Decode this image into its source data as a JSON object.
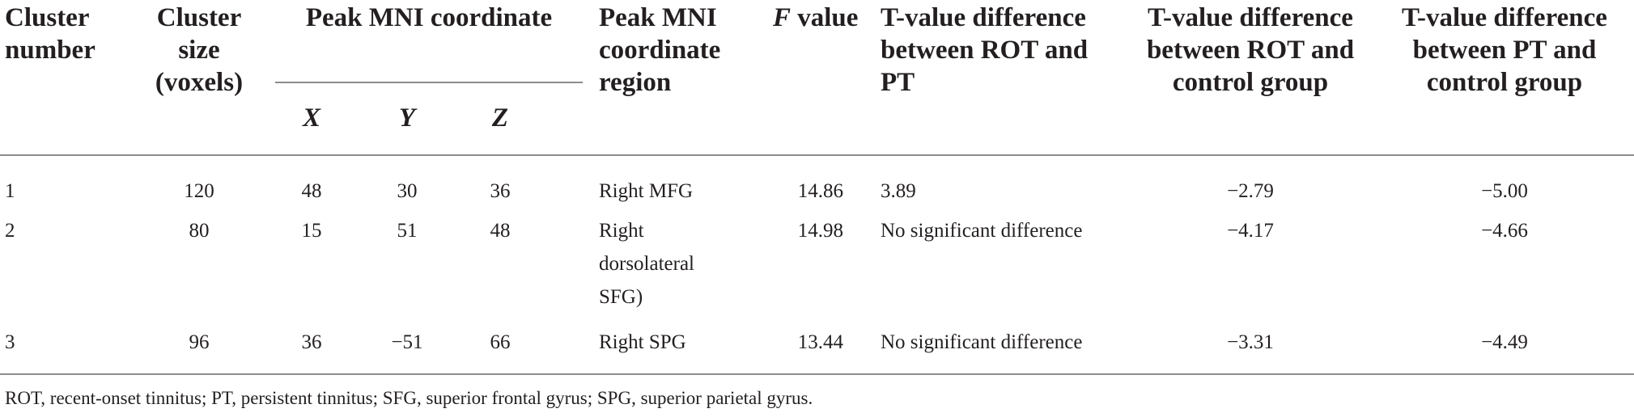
{
  "table": {
    "headers": {
      "cluster_number": "Cluster number",
      "cluster_size": "Cluster size (voxels)",
      "peak_mni_coordinate": "Peak MNI coordinate",
      "x": "X",
      "y": "Y",
      "z": "Z",
      "peak_region": "Peak MNI coordinate region",
      "f_value_letter": "F",
      "f_value_word": " value",
      "t_rot_pt": "T-value difference between ROT and PT",
      "t_rot_control": "T-value difference between ROT and control group",
      "t_pt_control": "T-value difference between PT and control group"
    },
    "rows": [
      {
        "cluster": "1",
        "size": "120",
        "x": "48",
        "y": "30",
        "z": "36",
        "region": "Right MFG",
        "f": "14.86",
        "t_rot_pt": "3.89",
        "t_rot_control": "−2.79",
        "t_pt_control": "−5.00"
      },
      {
        "cluster": "2",
        "size": "80",
        "x": "15",
        "y": "51",
        "z": "48",
        "region": "Right dorsolateral SFG)",
        "f": "14.98",
        "t_rot_pt": "No significant difference",
        "t_rot_control": "−4.17",
        "t_pt_control": "−4.66"
      },
      {
        "cluster": "3",
        "size": "96",
        "x": "36",
        "y": "−51",
        "z": "66",
        "region": "Right SPG",
        "f": "13.44",
        "t_rot_pt": "No significant difference",
        "t_rot_control": "−3.31",
        "t_pt_control": "−4.49"
      }
    ],
    "footnote": "ROT, recent-onset tinnitus; PT, persistent tinnitus; SFG, superior frontal gyrus; SPG, superior parietal gyrus."
  }
}
